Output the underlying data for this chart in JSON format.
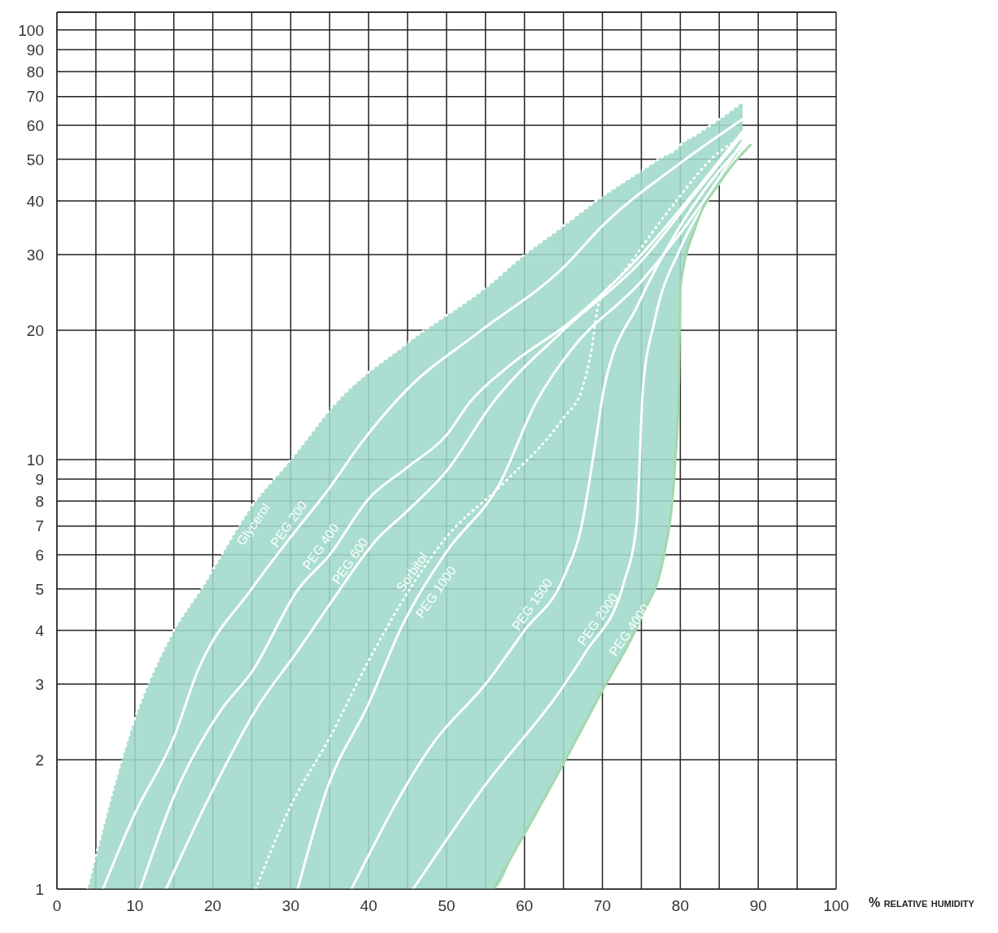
{
  "chart_data": {
    "type": "line",
    "xlabel": "% relative humidity",
    "xlim": [
      0,
      100
    ],
    "ylim": [
      1,
      110
    ],
    "log": true,
    "grid": true,
    "marker": "none",
    "xticks": [
      0,
      {
        "value": 5,
        "label": null
      },
      10,
      {
        "value": 15,
        "label": null
      },
      20,
      {
        "value": 25,
        "label": null
      },
      30,
      {
        "value": 35,
        "label": null
      },
      40,
      {
        "value": 45,
        "label": null
      },
      50,
      {
        "value": 55,
        "label": null
      },
      60,
      {
        "value": 65,
        "label": null
      },
      70,
      {
        "value": 75,
        "label": null
      },
      80,
      {
        "value": 85,
        "label": null
      },
      90,
      {
        "value": 95,
        "label": null
      },
      100
    ],
    "yticks": [
      1,
      2,
      3,
      4,
      5,
      6,
      7,
      8,
      9,
      10,
      20,
      30,
      40,
      50,
      60,
      70,
      80,
      90,
      100
    ],
    "series": [
      {
        "name": "Glycerol",
        "type": "area",
        "color": "#9fd9c9",
        "line_style": "dotted",
        "x": [
          3.9,
          10,
          15,
          18.5,
          25,
          30,
          36,
          45,
          56,
          59,
          65,
          70,
          75,
          78,
          79.3,
          79.8,
          80,
          82,
          85,
          88
        ],
        "values": [
          1,
          2.5,
          4,
          5,
          7.8,
          10,
          13.7,
          18.7,
          26,
          29,
          35,
          41,
          47,
          51,
          52.5,
          53.5,
          54,
          57,
          62,
          68
        ]
      },
      {
        "name": "PEG 200",
        "color": "#ffffff",
        "line_style": "solid",
        "x": [
          5.9,
          10,
          15,
          18,
          25,
          30,
          35,
          39,
          45,
          54,
          65,
          70,
          80,
          88
        ],
        "values": [
          1,
          1.5,
          2.25,
          3.2,
          5,
          6.6,
          8.6,
          10.9,
          14.6,
          19.7,
          28,
          35,
          49,
          62
        ]
      },
      {
        "name": "PEG 400",
        "color": "#ffffff",
        "line_style": "solid",
        "x": [
          10.7,
          15,
          21,
          25,
          31,
          35,
          40,
          45,
          50,
          53,
          58,
          66,
          75,
          84,
          88
        ],
        "values": [
          1,
          1.64,
          2.6,
          3.2,
          5,
          6,
          8.1,
          9.6,
          11.4,
          13.6,
          16.5,
          21,
          30,
          47,
          58
        ]
      },
      {
        "name": "PEG 600",
        "color": "#ffffff",
        "line_style": "solid",
        "x": [
          14,
          20,
          26,
          30.5,
          35,
          41,
          45,
          50,
          56,
          65,
          75,
          83,
          88
        ],
        "values": [
          1,
          1.7,
          2.7,
          3.5,
          4.6,
          6.5,
          7.6,
          9.4,
          13.6,
          20,
          29,
          44,
          57
        ]
      },
      {
        "name": "Sorbitol",
        "color": "#ffffff",
        "line_style": "dotted",
        "x": [
          25.5,
          30,
          35,
          40,
          45,
          50,
          57,
          65,
          67.4,
          68.6,
          69.5,
          72.5,
          79,
          85,
          88
        ],
        "values": [
          1,
          1.56,
          2.25,
          3.4,
          4.9,
          6.6,
          8.7,
          12.5,
          14.6,
          18,
          23,
          27,
          39,
          52,
          56
        ]
      },
      {
        "name": "PEG 1000",
        "color": "#ffffff",
        "line_style": "solid",
        "x": [
          30.9,
          34.6,
          40,
          44.3,
          50,
          56.7,
          61.5,
          66,
          75,
          83,
          88
        ],
        "values": [
          1,
          1.7,
          2.7,
          4.1,
          6.1,
          8.7,
          13.6,
          18,
          26,
          40,
          55
        ]
      },
      {
        "name": "PEG 1500",
        "color": "#ffffff",
        "line_style": "solid",
        "x": [
          37.8,
          48.4,
          55,
          60,
          65,
          67.4,
          69,
          70.2,
          74.6,
          80,
          85,
          88
        ],
        "values": [
          1,
          2.2,
          3,
          4,
          5.3,
          7.1,
          10.6,
          14.6,
          23,
          35,
          47,
          54
        ]
      },
      {
        "name": "PEG 2000",
        "color": "#ffffff",
        "line_style": "solid",
        "x": [
          45.7,
          55,
          64.6,
          67.8,
          72.8,
          74.4,
          75.2,
          76.7,
          80,
          85,
          88
        ],
        "values": [
          1,
          1.75,
          2.9,
          3.55,
          5.2,
          7.1,
          14.6,
          21,
          31,
          44,
          53
        ]
      },
      {
        "name": "PEG 4000",
        "color": "#a3d8ab",
        "line_style": "solid",
        "x": [
          56,
          65,
          70,
          75,
          78,
          79.3,
          79.8,
          80,
          82,
          85,
          89
        ],
        "values": [
          1,
          1.96,
          2.9,
          4.3,
          6.1,
          9.6,
          14.6,
          25,
          35,
          44,
          54
        ]
      }
    ]
  }
}
